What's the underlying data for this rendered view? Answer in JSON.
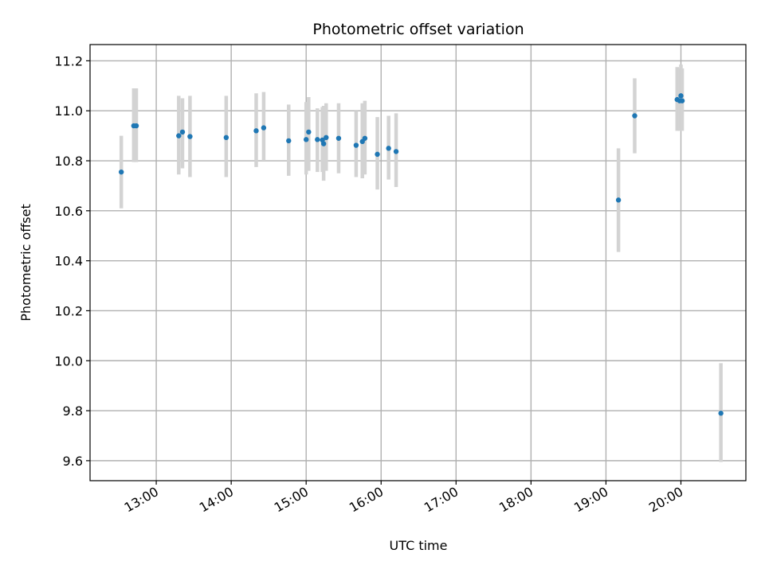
{
  "chart_data": {
    "type": "scatter",
    "title": "Photometric offset variation",
    "xlabel": "UTC time",
    "ylabel": "Photometric offset",
    "x_ticks": [
      "13:00",
      "14:00",
      "15:00",
      "16:00",
      "17:00",
      "18:00",
      "19:00",
      "20:00"
    ],
    "y_ticks": [
      "9.6",
      "9.8",
      "10.0",
      "10.2",
      "10.4",
      "10.6",
      "10.8",
      "11.0",
      "11.2"
    ],
    "xlim": [
      "12:07",
      "20:52"
    ],
    "ylim": [
      9.52,
      11.265
    ],
    "grid": true,
    "colors": {
      "point": "#1f77b4",
      "errorbar": "#d3d3d3",
      "grid": "#b0b0b0"
    },
    "points": [
      {
        "x": "12:32",
        "y": 10.755,
        "yerr_low": 10.61,
        "yerr_high": 10.9
      },
      {
        "x": "12:42",
        "y": 10.94,
        "yerr_low": 10.795,
        "yerr_high": 11.09
      },
      {
        "x": "12:44",
        "y": 10.94,
        "yerr_low": 10.795,
        "yerr_high": 11.09
      },
      {
        "x": "13:18",
        "y": 10.9,
        "yerr_low": 10.745,
        "yerr_high": 11.06
      },
      {
        "x": "13:21",
        "y": 10.915,
        "yerr_low": 10.77,
        "yerr_high": 11.05
      },
      {
        "x": "13:27",
        "y": 10.897,
        "yerr_low": 10.735,
        "yerr_high": 11.06
      },
      {
        "x": "13:56",
        "y": 10.893,
        "yerr_low": 10.735,
        "yerr_high": 11.06
      },
      {
        "x": "14:20",
        "y": 10.92,
        "yerr_low": 10.775,
        "yerr_high": 11.07
      },
      {
        "x": "14:26",
        "y": 10.932,
        "yerr_low": 10.8,
        "yerr_high": 11.075
      },
      {
        "x": "14:46",
        "y": 10.88,
        "yerr_low": 10.74,
        "yerr_high": 11.025
      },
      {
        "x": "15:00",
        "y": 10.885,
        "yerr_low": 10.745,
        "yerr_high": 11.035
      },
      {
        "x": "15:02",
        "y": 10.915,
        "yerr_low": 10.76,
        "yerr_high": 11.055
      },
      {
        "x": "15:09",
        "y": 10.885,
        "yerr_low": 10.755,
        "yerr_high": 11.01
      },
      {
        "x": "15:13",
        "y": 10.883,
        "yerr_low": 10.755,
        "yerr_high": 11.015
      },
      {
        "x": "15:14",
        "y": 10.868,
        "yerr_low": 10.72,
        "yerr_high": 11.02
      },
      {
        "x": "15:16",
        "y": 10.893,
        "yerr_low": 10.76,
        "yerr_high": 11.03
      },
      {
        "x": "15:26",
        "y": 10.89,
        "yerr_low": 10.75,
        "yerr_high": 11.03
      },
      {
        "x": "15:40",
        "y": 10.862,
        "yerr_low": 10.735,
        "yerr_high": 11.0
      },
      {
        "x": "15:45",
        "y": 10.877,
        "yerr_low": 10.73,
        "yerr_high": 11.03
      },
      {
        "x": "15:47",
        "y": 10.89,
        "yerr_low": 10.745,
        "yerr_high": 11.04
      },
      {
        "x": "15:57",
        "y": 10.826,
        "yerr_low": 10.685,
        "yerr_high": 10.975
      },
      {
        "x": "16:06",
        "y": 10.85,
        "yerr_low": 10.725,
        "yerr_high": 10.98
      },
      {
        "x": "16:12",
        "y": 10.837,
        "yerr_low": 10.695,
        "yerr_high": 10.99
      },
      {
        "x": "19:10",
        "y": 10.643,
        "yerr_low": 10.435,
        "yerr_high": 10.85
      },
      {
        "x": "19:23",
        "y": 10.98,
        "yerr_low": 10.83,
        "yerr_high": 11.13
      },
      {
        "x": "19:57",
        "y": 11.045,
        "yerr_low": 10.92,
        "yerr_high": 11.175
      },
      {
        "x": "19:59",
        "y": 11.04,
        "yerr_low": 10.92,
        "yerr_high": 11.17
      },
      {
        "x": "20:00",
        "y": 11.06,
        "yerr_low": 10.93,
        "yerr_high": 11.185
      },
      {
        "x": "20:01",
        "y": 11.04,
        "yerr_low": 10.92,
        "yerr_high": 11.17
      },
      {
        "x": "20:32",
        "y": 9.79,
        "yerr_low": 9.595,
        "yerr_high": 9.99
      }
    ]
  }
}
